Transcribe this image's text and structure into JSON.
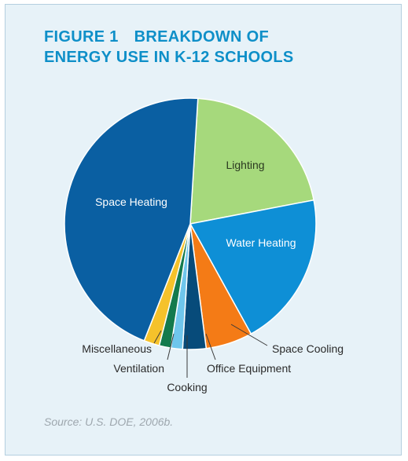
{
  "figure_label": "FIGURE 1",
  "title_line1": "BREAKDOWN OF",
  "title_line2": "ENERGY USE IN K-12 SCHOOLS",
  "source": "Source: U.S. DOE, 2006b.",
  "chart_data": {
    "type": "pie",
    "title": "BREAKDOWN OF ENERGY USE IN K-12 SCHOOLS",
    "unit": "percent",
    "slices": [
      {
        "label": "Lighting",
        "value": 21,
        "color": "#a6d97c"
      },
      {
        "label": "Water Heating",
        "value": 20,
        "color": "#0e8fd6"
      },
      {
        "label": "Space Cooling",
        "value": 6,
        "color": "#f47b16"
      },
      {
        "label": "Office Equipment",
        "value": 3,
        "color": "#074b7a"
      },
      {
        "label": "Cooking",
        "value": 1.5,
        "color": "#6fc6ec"
      },
      {
        "label": "Ventilation",
        "value": 1.5,
        "color": "#137a4d"
      },
      {
        "label": "Miscellaneous",
        "value": 2,
        "color": "#f5c22b"
      },
      {
        "label": "Space Heating",
        "value": 45,
        "color": "#0a5fa2"
      }
    ]
  }
}
